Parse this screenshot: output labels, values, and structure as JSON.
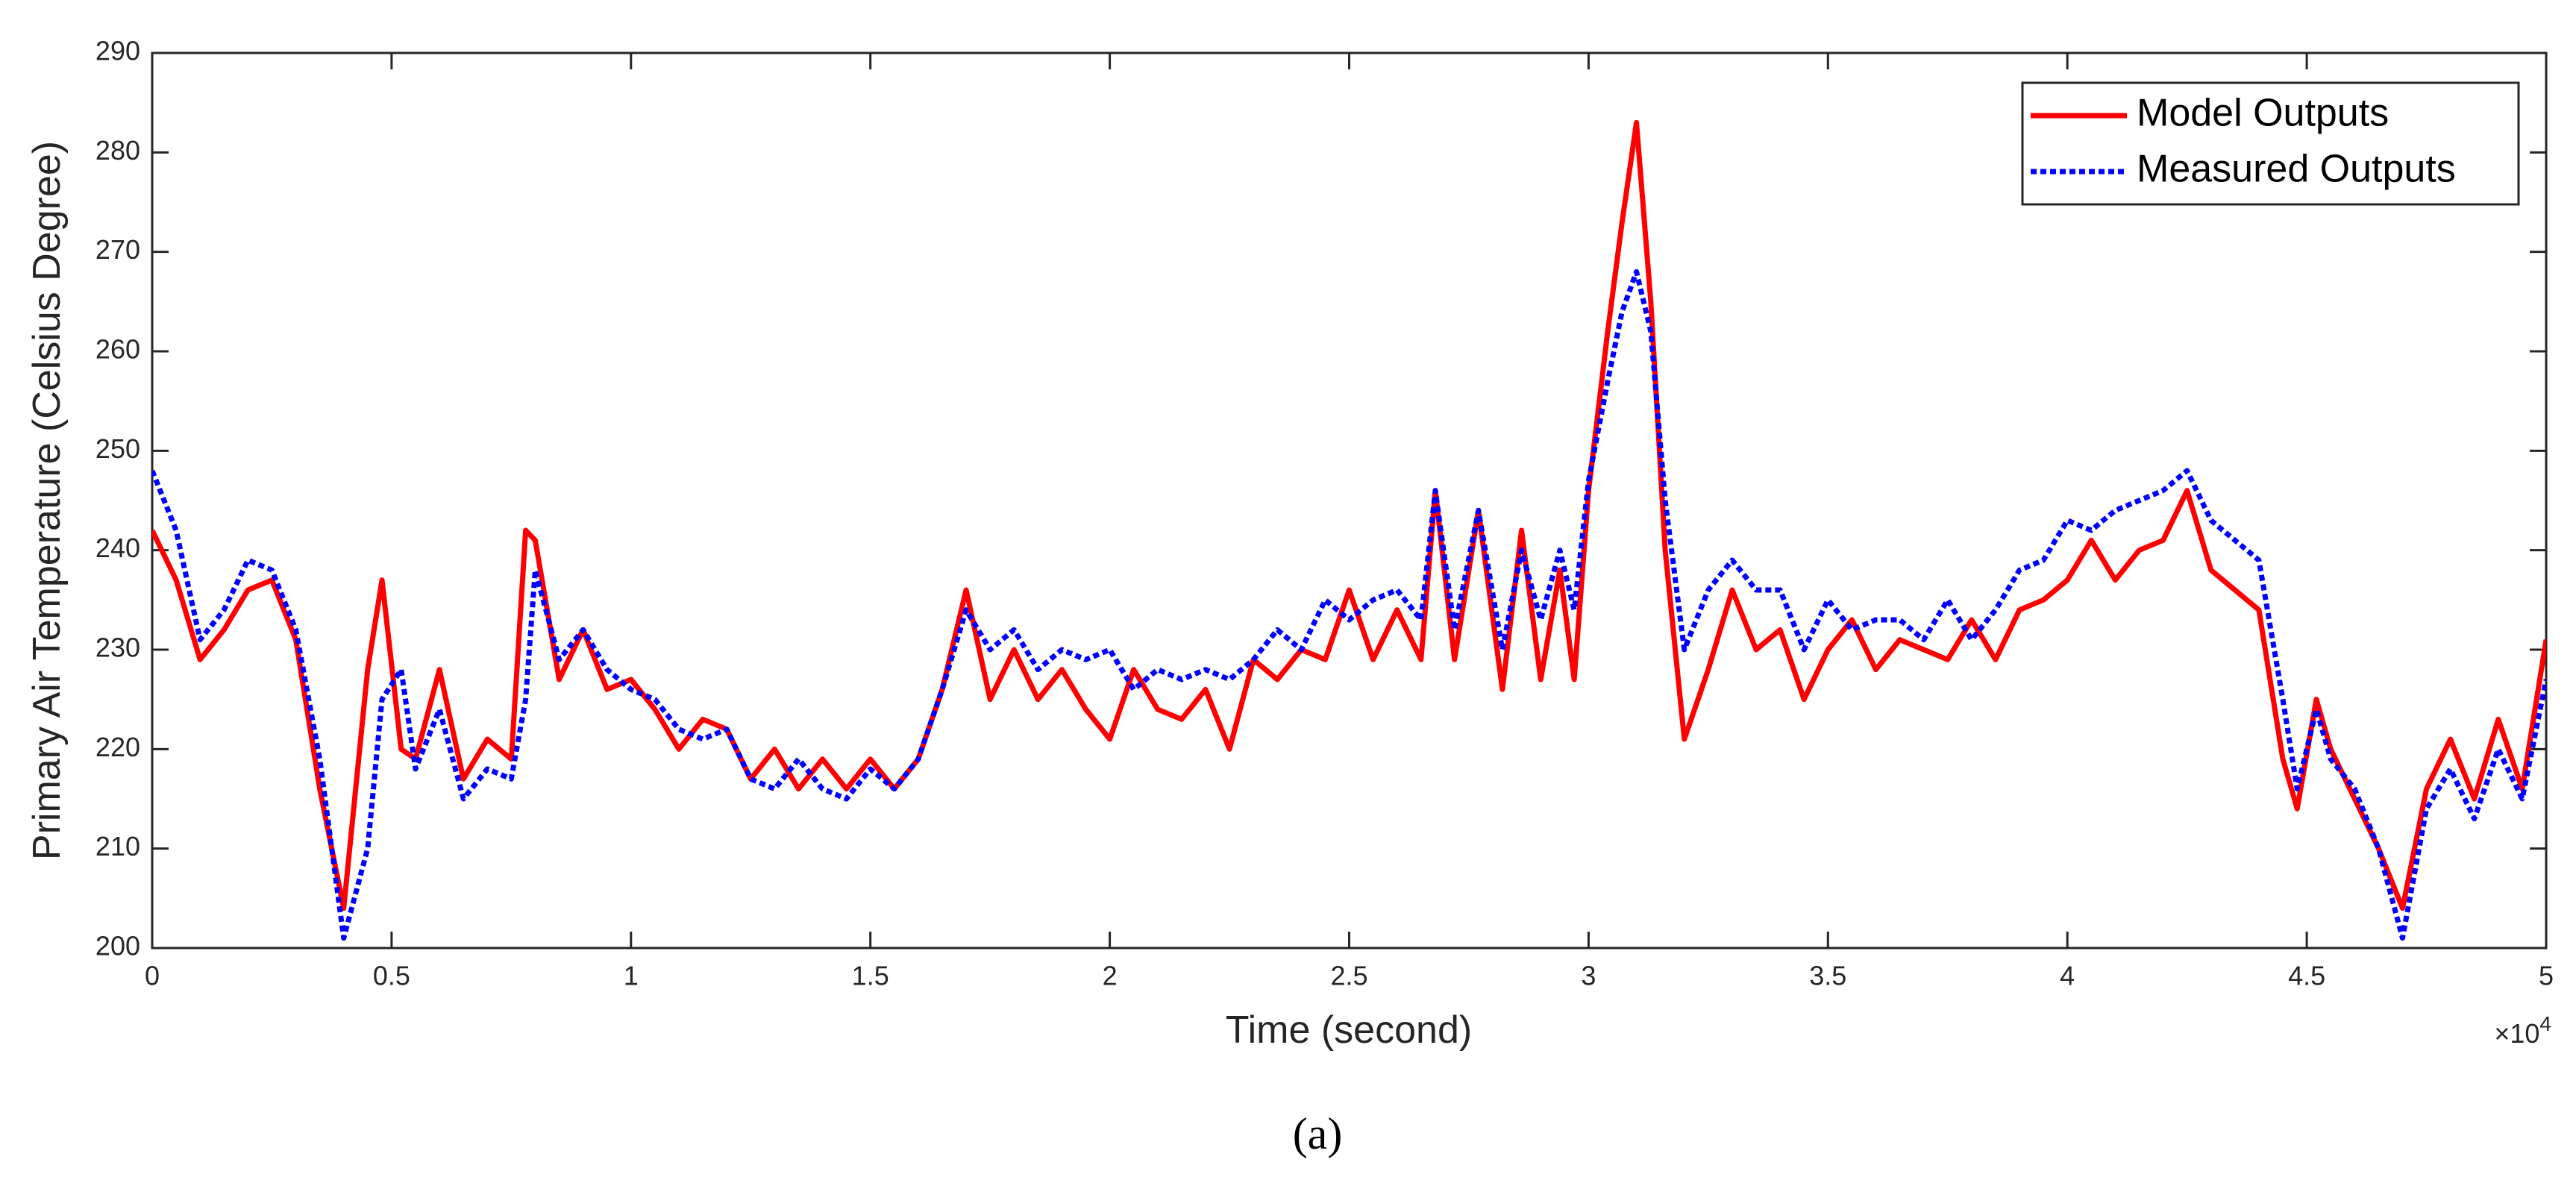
{
  "chart_data": {
    "type": "line",
    "xlabel": "Time (second)",
    "ylabel": "Primary Air Temperature (Celsius Degree)",
    "x_multiplier": {
      "base": "×10",
      "exponent": "4"
    },
    "caption": "(a)",
    "xlim": [
      0,
      5
    ],
    "ylim": [
      200,
      290
    ],
    "xticks": [
      0,
      0.5,
      1,
      1.5,
      2,
      2.5,
      3,
      3.5,
      4,
      4.5,
      5
    ],
    "yticks": [
      200,
      210,
      220,
      230,
      240,
      250,
      260,
      270,
      280,
      290
    ],
    "grid": false,
    "legend_location": "northeast",
    "x": [
      0,
      0.05,
      0.1,
      0.15,
      0.2,
      0.25,
      0.3,
      0.35,
      0.4,
      0.45,
      0.48,
      0.52,
      0.55,
      0.6,
      0.65,
      0.7,
      0.75,
      0.78,
      0.8,
      0.85,
      0.9,
      0.95,
      1,
      1.05,
      1.1,
      1.15,
      1.2,
      1.25,
      1.3,
      1.35,
      1.4,
      1.45,
      1.5,
      1.55,
      1.6,
      1.65,
      1.7,
      1.75,
      1.8,
      1.85,
      1.9,
      1.95,
      2,
      2.05,
      2.1,
      2.15,
      2.2,
      2.25,
      2.3,
      2.35,
      2.4,
      2.45,
      2.5,
      2.55,
      2.6,
      2.65,
      2.68,
      2.72,
      2.77,
      2.82,
      2.86,
      2.9,
      2.94,
      2.97,
      3,
      3.04,
      3.07,
      3.1,
      3.13,
      3.16,
      3.2,
      3.25,
      3.3,
      3.35,
      3.4,
      3.45,
      3.5,
      3.55,
      3.6,
      3.65,
      3.7,
      3.75,
      3.8,
      3.85,
      3.9,
      3.95,
      4,
      4.05,
      4.1,
      4.15,
      4.2,
      4.25,
      4.3,
      4.35,
      4.4,
      4.45,
      4.48,
      4.52,
      4.55,
      4.6,
      4.65,
      4.7,
      4.75,
      4.8,
      4.85,
      4.9,
      4.95,
      5
    ],
    "series": [
      {
        "name": "Model Outputs",
        "color": "#ff0000",
        "style": "solid",
        "values": [
          242,
          237,
          229,
          232,
          236,
          237,
          231,
          216,
          204,
          228,
          237,
          220,
          219,
          228,
          217,
          221,
          219,
          242,
          241,
          227,
          232,
          226,
          227,
          224,
          220,
          223,
          222,
          217,
          220,
          216,
          219,
          216,
          219,
          216,
          219,
          226,
          236,
          225,
          230,
          225,
          228,
          224,
          221,
          228,
          224,
          223,
          226,
          220,
          229,
          227,
          230,
          229,
          236,
          229,
          234,
          229,
          246,
          229,
          244,
          226,
          242,
          227,
          238,
          227,
          246,
          262,
          273,
          283,
          265,
          240,
          221,
          228,
          236,
          230,
          232,
          225,
          230,
          233,
          228,
          231,
          230,
          229,
          233,
          229,
          234,
          235,
          237,
          241,
          237,
          240,
          241,
          246,
          238,
          236,
          234,
          219,
          214,
          225,
          220,
          215,
          210,
          204,
          216,
          221,
          215,
          223,
          216,
          231
        ]
      },
      {
        "name": "Measured Outputs",
        "color": "#0000ff",
        "style": "dotted",
        "values": [
          248,
          242,
          231,
          234,
          239,
          238,
          232,
          219,
          201,
          210,
          225,
          228,
          218,
          224,
          215,
          218,
          217,
          225,
          238,
          229,
          232,
          228,
          226,
          225,
          222,
          221,
          222,
          217,
          216,
          219,
          216,
          215,
          218,
          216,
          219,
          226,
          234,
          230,
          232,
          228,
          230,
          229,
          230,
          226,
          228,
          227,
          228,
          227,
          229,
          232,
          230,
          235,
          233,
          235,
          236,
          233,
          246,
          232,
          244,
          230,
          240,
          233,
          240,
          234,
          247,
          257,
          264,
          268,
          262,
          245,
          230,
          236,
          239,
          236,
          236,
          230,
          235,
          232,
          233,
          233,
          231,
          235,
          231,
          234,
          238,
          239,
          243,
          242,
          244,
          245,
          246,
          248,
          243,
          241,
          239,
          225,
          216,
          224,
          219,
          216,
          210,
          201,
          214,
          218,
          213,
          220,
          215,
          227
        ]
      }
    ]
  }
}
